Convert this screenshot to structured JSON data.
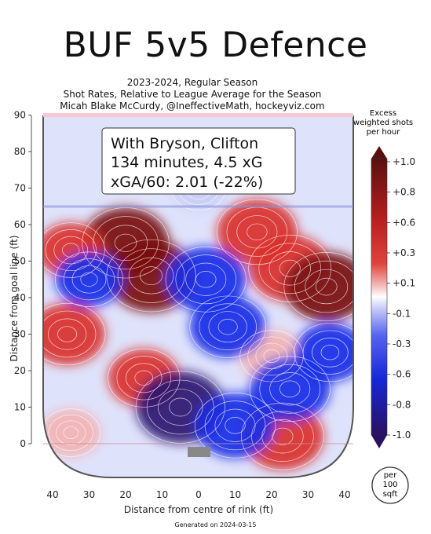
{
  "title": "BUF 5v5 Defence",
  "subtitle_lines": [
    "2023-2024, Regular Season",
    "Shot Rates, Relative to League Average for the Season",
    "Micah Blake McCurdy, @IneffectiveMath, hockeyviz.com"
  ],
  "footer": "Generated on 2024-03-15",
  "annotation": {
    "line1": "With Bryson, Clifton",
    "line2": "134 minutes, 4.5 xG",
    "line3": "xGA/60: 2.01 (-22%)"
  },
  "colors": {
    "strong_red": "#7a1010",
    "red": "#d9302a",
    "light_red": "#f2b3b3",
    "neutral": "#ffffff",
    "light_blue": "#c9cdf6",
    "blue": "#1a2ee6",
    "dark_blue": "#2a1470",
    "crease_pink": "#f6c9d4",
    "net_gray": "#888888"
  },
  "chart_data": {
    "type": "heatmap",
    "xlabel": "Distance from centre of rink (ft)",
    "ylabel": "Distance from goal line (ft)",
    "x_ticks": [
      "40",
      "30",
      "20",
      "10",
      "0",
      "10",
      "20",
      "30",
      "40"
    ],
    "y_ticks": [
      "0",
      "10",
      "20",
      "30",
      "40",
      "50",
      "60",
      "70",
      "80",
      "90"
    ],
    "xlim": [
      -42.5,
      42.5
    ],
    "ylim": [
      -11,
      90
    ],
    "colorbar": {
      "title_lines": [
        "Excess",
        "weighted shots",
        "per hour"
      ],
      "tick_labels": [
        "+1.0",
        "+0.8",
        "+0.6",
        "+0.3",
        "+0.1",
        "-0.1",
        "-0.3",
        "-0.6",
        "-0.8",
        "-1.0"
      ],
      "tick_values": [
        1.0,
        0.8,
        0.6,
        0.3,
        0.1,
        -0.1,
        -0.3,
        -0.6,
        -0.8,
        -1.0
      ],
      "unit_lines": [
        "per",
        "100",
        "sqft"
      ]
    },
    "hotspots": [
      {
        "x": -20,
        "y": 55,
        "value": 0.95
      },
      {
        "x": -13,
        "y": 46,
        "value": 1.0
      },
      {
        "x": -35,
        "y": 53,
        "value": 0.5
      },
      {
        "x": -36,
        "y": 30,
        "value": 0.7
      },
      {
        "x": -15,
        "y": 18,
        "value": 0.6
      },
      {
        "x": -35,
        "y": 3,
        "value": 0.3
      },
      {
        "x": 16,
        "y": 58,
        "value": 0.8
      },
      {
        "x": 25,
        "y": 48,
        "value": 0.85
      },
      {
        "x": 35,
        "y": 43,
        "value": 0.9
      },
      {
        "x": 20,
        "y": 24,
        "value": 0.4
      },
      {
        "x": 23,
        "y": 2,
        "value": 0.85
      },
      {
        "x": 2,
        "y": 45,
        "value": -0.8
      },
      {
        "x": 8,
        "y": 32,
        "value": -0.7
      },
      {
        "x": -5,
        "y": 10,
        "value": -1.0
      },
      {
        "x": 10,
        "y": 5,
        "value": -0.8
      },
      {
        "x": 25,
        "y": 15,
        "value": -0.8
      },
      {
        "x": -30,
        "y": 45,
        "value": -0.5
      },
      {
        "x": 36,
        "y": 25,
        "value": -0.6
      },
      {
        "x": 0,
        "y": 70,
        "value": -0.2
      }
    ]
  }
}
